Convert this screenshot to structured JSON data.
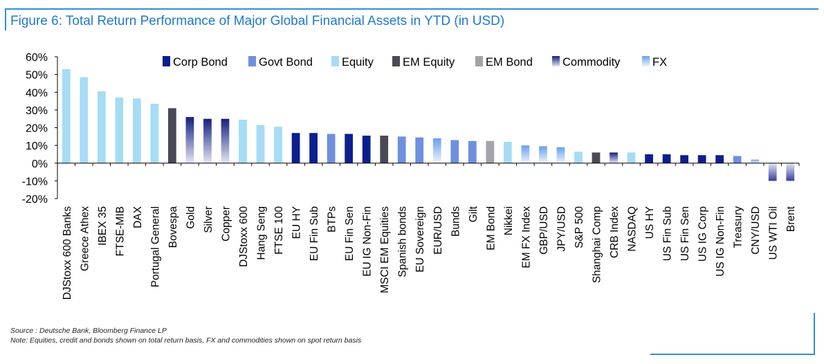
{
  "figure": {
    "title": "Figure 6: Total Return Performance of Major Global Financial Assets in YTD (in USD)",
    "source": "Source : Deutsche Bank, Bloomberg Finance LP",
    "note": "Note: Equities, credit and bonds shown on total return basis, FX and commodities shown on spot return basis"
  },
  "colors": {
    "Corp Bond": "#0b1f8f",
    "Govt Bond": "#6f8fe0",
    "Equity": "#a6dcf5",
    "EM Equity": "#4a4a56",
    "EM Bond": "#a3a3a8",
    "Commodity": "#14207f",
    "FX": "#6b9ff0"
  },
  "chart_data": {
    "type": "bar",
    "title": "Figure 6: Total Return Performance of Major Global Financial Assets in YTD (in USD)",
    "xlabel": "",
    "ylabel": "",
    "ylim": [
      -20,
      60
    ],
    "yticks": [
      "-20%",
      "-10%",
      "0%",
      "10%",
      "20%",
      "30%",
      "40%",
      "50%",
      "60%"
    ],
    "grid": false,
    "legend_position": "top",
    "legend": [
      "Corp Bond",
      "Govt Bond",
      "Equity",
      "EM Equity",
      "EM Bond",
      "Commodity",
      "FX"
    ],
    "categories": [
      "DJStoxx 600 Banks",
      "Greece Athex",
      "IBEX 35",
      "FTSE-MIB",
      "DAX",
      "Portugal General",
      "Bovespa",
      "Gold",
      "Silver",
      "Copper",
      "DJStoxx 600",
      "Hang Seng",
      "FTSE 100",
      "EU HY",
      "EU Fin Sub",
      "BTPs",
      "EU Fin Sen",
      "EU IG Non-Fin",
      "MSCI EM Equities",
      "Spanish bonds",
      "EU Sovereign",
      "EUR/USD",
      "Bunds",
      "Gilt",
      "EM Bond",
      "Nikkei",
      "EM FX Index",
      "GBP/USD",
      "JPY/USD",
      "S&P 500",
      "Shanghai Comp",
      "CRB Index",
      "NASDAQ",
      "US HY",
      "US Fin Sub",
      "US Fin Sen",
      "US IG Corp",
      "US IG Non-Fin",
      "Treasury",
      "CNY/USD",
      "US WTI Oil",
      "Brent"
    ],
    "values": [
      53,
      48.5,
      40.5,
      37,
      36.5,
      33.5,
      31,
      26,
      25,
      25,
      24.5,
      21.5,
      20.5,
      17,
      17,
      16.5,
      16.5,
      15.5,
      15.5,
      15,
      14.5,
      14,
      13,
      12.5,
      12.5,
      12,
      10,
      9.5,
      9,
      6.5,
      6,
      6,
      6,
      5,
      5,
      4.5,
      4.5,
      4.5,
      4,
      2,
      -10,
      -10
    ],
    "asset_class": [
      "Equity",
      "Equity",
      "Equity",
      "Equity",
      "Equity",
      "Equity",
      "EM Equity",
      "Commodity",
      "Commodity",
      "Commodity",
      "Equity",
      "Equity",
      "Equity",
      "Corp Bond",
      "Corp Bond",
      "Govt Bond",
      "Corp Bond",
      "Corp Bond",
      "EM Equity",
      "Govt Bond",
      "Govt Bond",
      "FX",
      "Govt Bond",
      "Govt Bond",
      "EM Bond",
      "Equity",
      "FX",
      "FX",
      "FX",
      "Equity",
      "EM Equity",
      "Commodity",
      "Equity",
      "Corp Bond",
      "Corp Bond",
      "Corp Bond",
      "Corp Bond",
      "Corp Bond",
      "Govt Bond",
      "FX",
      "Commodity",
      "Commodity"
    ]
  }
}
